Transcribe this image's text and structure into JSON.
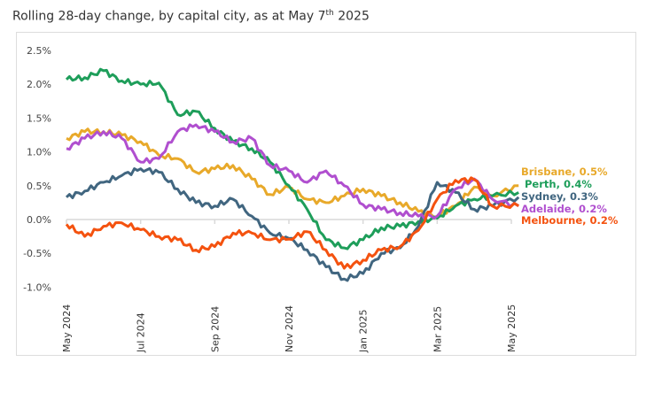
{
  "title": {
    "text": "Rolling 28-day change, by capital city, as at May 7",
    "sup": "th",
    "tail": " 2025"
  },
  "chart_data": {
    "type": "line",
    "title": "Rolling 28-day change, by capital city, as at May 7th 2025",
    "xlabel": "",
    "ylabel": "",
    "ylim": [
      -1.0,
      2.5
    ],
    "yticks": [
      2.5,
      2.0,
      1.5,
      1.0,
      0.5,
      0.0,
      -0.5,
      -1.0
    ],
    "ytick_labels": [
      "2.5%",
      "2.0%",
      "1.5%",
      "1.0%",
      "0.5%",
      "0.0%",
      "-0.5%",
      "-1.0%"
    ],
    "xticks": [
      "2024-05",
      "2024-07",
      "2024-09",
      "2024-11",
      "2025-01",
      "2025-03",
      "2025-05"
    ],
    "xtick_labels": [
      "May 2024",
      "Jul 2024",
      "Sep 2024",
      "Nov 2024",
      "Jan 2025",
      "Mar 2025",
      "May 2025"
    ],
    "grid": false,
    "legend": "direct labels at right",
    "x": [
      "2024-05-01",
      "2024-05-16",
      "2024-06-01",
      "2024-06-16",
      "2024-07-01",
      "2024-07-16",
      "2024-08-01",
      "2024-08-16",
      "2024-09-01",
      "2024-09-16",
      "2024-10-01",
      "2024-10-16",
      "2024-11-01",
      "2024-11-16",
      "2024-12-01",
      "2024-12-16",
      "2025-01-01",
      "2025-01-16",
      "2025-02-01",
      "2025-02-16",
      "2025-03-01",
      "2025-03-16",
      "2025-04-01",
      "2025-04-16",
      "2025-05-07"
    ],
    "series": [
      {
        "name": "Brisbane",
        "label": "Brisbane, 0.5%",
        "color": "#E8A92A",
        "values": [
          1.2,
          1.3,
          1.3,
          1.25,
          1.15,
          0.95,
          0.9,
          0.7,
          0.75,
          0.8,
          0.6,
          0.37,
          0.48,
          0.3,
          0.25,
          0.35,
          0.45,
          0.35,
          0.25,
          0.12,
          0.05,
          0.2,
          0.48,
          0.35,
          0.5
        ]
      },
      {
        "name": "Perth",
        "label": "Perth, 0.4%",
        "color": "#1E9E5A",
        "values": [
          2.07,
          2.1,
          2.2,
          2.05,
          2.0,
          2.02,
          1.55,
          1.6,
          1.35,
          1.15,
          1.05,
          0.85,
          0.5,
          0.15,
          -0.3,
          -0.42,
          -0.3,
          -0.12,
          -0.1,
          -0.03,
          0.02,
          0.2,
          0.3,
          0.35,
          0.4
        ]
      },
      {
        "name": "Sydney",
        "label": "Sydney, 0.3%",
        "color": "#416680",
        "values": [
          0.33,
          0.42,
          0.55,
          0.65,
          0.75,
          0.7,
          0.45,
          0.25,
          0.2,
          0.3,
          0.05,
          -0.2,
          -0.28,
          -0.45,
          -0.7,
          -0.88,
          -0.8,
          -0.5,
          -0.42,
          -0.1,
          0.55,
          0.4,
          0.15,
          0.2,
          0.33
        ]
      },
      {
        "name": "Adelaide",
        "label": "Adelaide, 0.2%",
        "color": "#B04FCF",
        "values": [
          1.05,
          1.2,
          1.3,
          1.2,
          0.85,
          0.9,
          1.3,
          1.4,
          1.3,
          1.15,
          1.2,
          0.8,
          0.72,
          0.55,
          0.72,
          0.5,
          0.22,
          0.15,
          0.1,
          0.05,
          0.05,
          0.45,
          0.6,
          0.3,
          0.2
        ]
      },
      {
        "name": "Melbourne",
        "label": "Melbourne, 0.2%",
        "color": "#F4520F",
        "values": [
          -0.07,
          -0.25,
          -0.1,
          -0.05,
          -0.15,
          -0.25,
          -0.3,
          -0.45,
          -0.4,
          -0.2,
          -0.2,
          -0.3,
          -0.29,
          -0.18,
          -0.45,
          -0.72,
          -0.6,
          -0.45,
          -0.4,
          -0.16,
          0.3,
          0.58,
          0.59,
          0.2,
          0.2
        ]
      }
    ]
  }
}
